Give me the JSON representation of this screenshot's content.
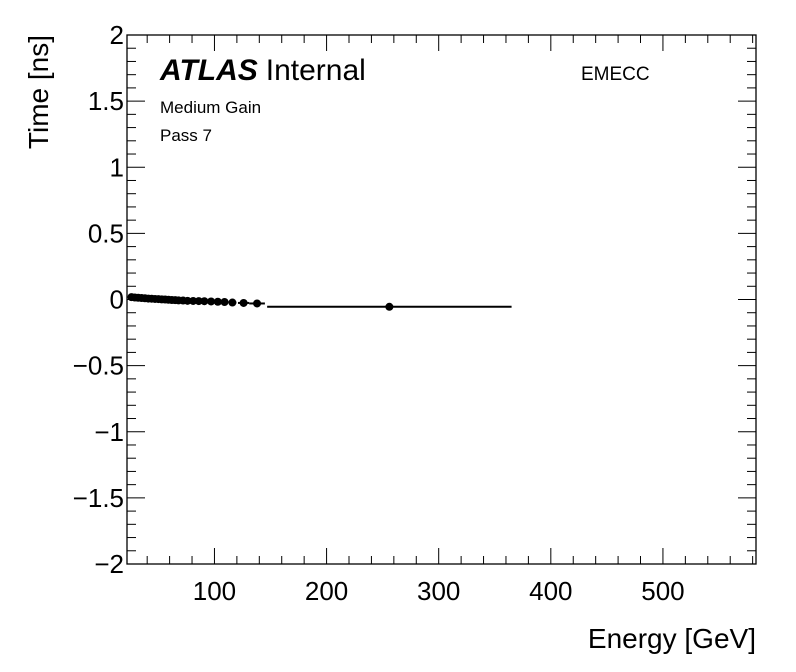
{
  "chart_data": {
    "type": "scatter",
    "title": "",
    "xlabel": "Energy [GeV]",
    "ylabel": "Time [ns]",
    "xlim": [
      22,
      583
    ],
    "ylim": [
      -2,
      2
    ],
    "x_ticks": [
      100,
      200,
      300,
      400,
      500
    ],
    "y_ticks": [
      2,
      1.5,
      1,
      0.5,
      0,
      -0.5,
      -1,
      -1.5,
      -2
    ],
    "y_tick_labels": [
      "2",
      "1.5",
      "1",
      "0.5",
      "0",
      "−0.5",
      "−1",
      "−1.5",
      "−2"
    ],
    "grid": false,
    "annotations": {
      "experiment": "ATLAS",
      "status": "Internal",
      "gain": "Medium Gain",
      "pass": "Pass 7",
      "region": "EMECC"
    },
    "series": [
      {
        "marker": "circle",
        "color": "#000000",
        "points": [
          {
            "x": 26,
            "y": 0.018,
            "xerr": 1.5
          },
          {
            "x": 29,
            "y": 0.015,
            "xerr": 1.5
          },
          {
            "x": 32,
            "y": 0.013,
            "xerr": 1.5
          },
          {
            "x": 35,
            "y": 0.011,
            "xerr": 1.5
          },
          {
            "x": 38,
            "y": 0.009,
            "xerr": 1.5
          },
          {
            "x": 41,
            "y": 0.007,
            "xerr": 1.5
          },
          {
            "x": 44,
            "y": 0.006,
            "xerr": 1.5
          },
          {
            "x": 47,
            "y": 0.004,
            "xerr": 1.5
          },
          {
            "x": 50,
            "y": 0.003,
            "xerr": 1.5
          },
          {
            "x": 53,
            "y": 0.001,
            "xerr": 1.5
          },
          {
            "x": 56,
            "y": 0.0,
            "xerr": 1.5
          },
          {
            "x": 59,
            "y": -0.002,
            "xerr": 1.5
          },
          {
            "x": 62,
            "y": -0.004,
            "xerr": 1.5
          },
          {
            "x": 65,
            "y": -0.005,
            "xerr": 1.5
          },
          {
            "x": 68,
            "y": -0.007,
            "xerr": 1.5
          },
          {
            "x": 72,
            "y": -0.008,
            "xerr": 2
          },
          {
            "x": 76,
            "y": -0.01,
            "xerr": 2
          },
          {
            "x": 81,
            "y": -0.011,
            "xerr": 2.5
          },
          {
            "x": 86,
            "y": -0.012,
            "xerr": 2.5
          },
          {
            "x": 91,
            "y": -0.013,
            "xerr": 2.5
          },
          {
            "x": 97,
            "y": -0.015,
            "xerr": 3
          },
          {
            "x": 103,
            "y": -0.017,
            "xerr": 3
          },
          {
            "x": 109,
            "y": -0.019,
            "xerr": 3
          },
          {
            "x": 116,
            "y": -0.023,
            "xerr": 3.5
          },
          {
            "x": 126,
            "y": -0.026,
            "xerr": 5
          },
          {
            "x": 138,
            "y": -0.03,
            "xerr": 7
          },
          {
            "x": 256,
            "y": -0.055,
            "xerr": 109
          }
        ]
      }
    ]
  }
}
